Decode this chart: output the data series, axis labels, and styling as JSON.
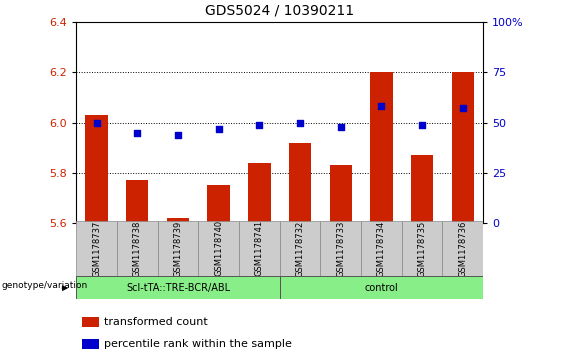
{
  "title": "GDS5024 / 10390211",
  "samples": [
    "GSM1178737",
    "GSM1178738",
    "GSM1178739",
    "GSM1178740",
    "GSM1178741",
    "GSM1178732",
    "GSM1178733",
    "GSM1178734",
    "GSM1178735",
    "GSM1178736"
  ],
  "bar_values": [
    6.03,
    5.77,
    5.62,
    5.75,
    5.84,
    5.92,
    5.83,
    6.2,
    5.87,
    6.2
  ],
  "dot_values": [
    50,
    45,
    44,
    47,
    49,
    50,
    48,
    58,
    49,
    57
  ],
  "ylim": [
    5.6,
    6.4
  ],
  "y2lim": [
    0,
    100
  ],
  "yticks": [
    5.6,
    5.8,
    6.0,
    6.2,
    6.4
  ],
  "y2ticks": [
    0,
    25,
    50,
    75,
    100
  ],
  "bar_color": "#cc2200",
  "dot_color": "#0000cc",
  "bar_bottom": 5.6,
  "group1_label": "Scl-tTA::TRE-BCR/ABL",
  "group2_label": "control",
  "group1_indices": [
    0,
    1,
    2,
    3,
    4
  ],
  "group2_indices": [
    5,
    6,
    7,
    8,
    9
  ],
  "group_color": "#88ee88",
  "xlabel_left": "genotype/variation",
  "legend_bar": "transformed count",
  "legend_dot": "percentile rank within the sample",
  "title_fontsize": 10,
  "tick_fontsize": 8,
  "ylabel_color_left": "#cc2200",
  "ylabel_color_right": "#0000cc",
  "grid_ticks": [
    5.8,
    6.0,
    6.2
  ],
  "bar_width": 0.55
}
